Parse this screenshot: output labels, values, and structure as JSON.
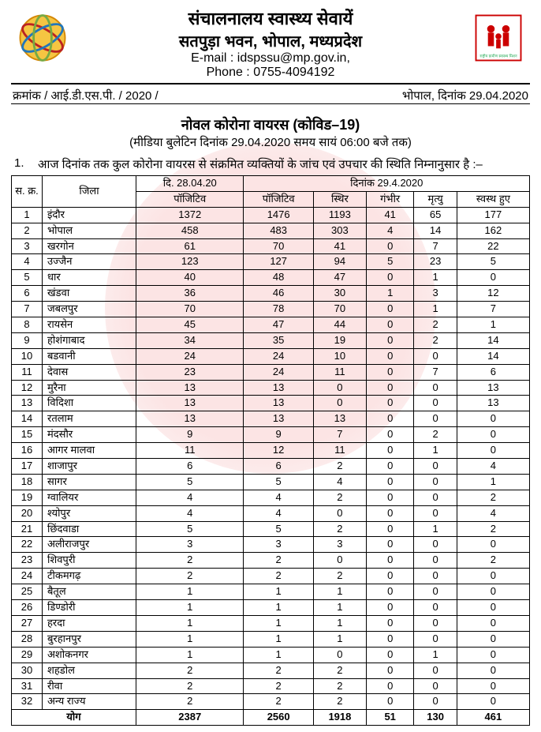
{
  "header": {
    "line1": "संचालनालय स्वास्थ्य सेवायें",
    "line2": "सतपुड़ा भवन, भोपाल, मध्यप्रदेश",
    "email_label": "E-mail : idspssu@mp.gov.in,",
    "phone_label": "Phone : 0755-4094192"
  },
  "subheader": {
    "left": "क्रमांक / आई.डी.एस.पी. / 2020 /",
    "right": "भोपाल, दिनांक 29.04.2020"
  },
  "title": {
    "main": "नोवल कोरोना वायरस (कोविड–19)",
    "sub": "(मीडिया बुलेटिन दिनांक 29.04.2020 समय सायं 06:00 बजे तक)"
  },
  "intro": {
    "num": "1.",
    "text": "आज दिनांक तक कुल कोरोना वायरस से संक्रमित व्यक्तियों के जांच एवं उपचार की स्थिति निम्नानुसार है :–"
  },
  "table": {
    "col_sno": "स.\nक्र.",
    "col_district": "जिला",
    "col_date1": "दि. 28.04.20",
    "col_date2": "दिनांक 29.4.2020",
    "sub_positive": "पॉजिटिव",
    "sub_positive2": "पॉजिटिव",
    "sub_stable": "स्थिर",
    "sub_serious": "गंभीर",
    "sub_death": "मृत्यु",
    "sub_recovered": "स्वस्थ हुए",
    "rows": [
      [
        "1",
        "इंदौर",
        "1372",
        "1476",
        "1193",
        "41",
        "65",
        "177"
      ],
      [
        "2",
        "भोपाल",
        "458",
        "483",
        "303",
        "4",
        "14",
        "162"
      ],
      [
        "3",
        "खरगोन",
        "61",
        "70",
        "41",
        "0",
        "7",
        "22"
      ],
      [
        "4",
        "उज्जैन",
        "123",
        "127",
        "94",
        "5",
        "23",
        "5"
      ],
      [
        "5",
        "धार",
        "40",
        "48",
        "47",
        "0",
        "1",
        "0"
      ],
      [
        "6",
        "खंडवा",
        "36",
        "46",
        "30",
        "1",
        "3",
        "12"
      ],
      [
        "7",
        "जबलपुर",
        "70",
        "78",
        "70",
        "0",
        "1",
        "7"
      ],
      [
        "8",
        "रायसेन",
        "45",
        "47",
        "44",
        "0",
        "2",
        "1"
      ],
      [
        "9",
        "होशंगाबाद",
        "34",
        "35",
        "19",
        "0",
        "2",
        "14"
      ],
      [
        "10",
        "बडवानी",
        "24",
        "24",
        "10",
        "0",
        "0",
        "14"
      ],
      [
        "11",
        "देवास",
        "23",
        "24",
        "11",
        "0",
        "7",
        "6"
      ],
      [
        "12",
        "मुरैना",
        "13",
        "13",
        "0",
        "0",
        "0",
        "13"
      ],
      [
        "13",
        "विदिशा",
        "13",
        "13",
        "0",
        "0",
        "0",
        "13"
      ],
      [
        "14",
        "रतलाम",
        "13",
        "13",
        "13",
        "0",
        "0",
        "0"
      ],
      [
        "15",
        "मंदसौर",
        "9",
        "9",
        "7",
        "0",
        "2",
        "0"
      ],
      [
        "16",
        "आगर मालवा",
        "11",
        "12",
        "11",
        "0",
        "1",
        "0"
      ],
      [
        "17",
        "शाजापुर",
        "6",
        "6",
        "2",
        "0",
        "0",
        "4"
      ],
      [
        "18",
        "सागर",
        "5",
        "5",
        "4",
        "0",
        "0",
        "1"
      ],
      [
        "19",
        "ग्वालियर",
        "4",
        "4",
        "2",
        "0",
        "0",
        "2"
      ],
      [
        "20",
        "श्योपुर",
        "4",
        "4",
        "0",
        "0",
        "0",
        "4"
      ],
      [
        "21",
        "छिंदवाडा",
        "5",
        "5",
        "2",
        "0",
        "1",
        "2"
      ],
      [
        "22",
        "अलीराजपुर",
        "3",
        "3",
        "3",
        "0",
        "0",
        "0"
      ],
      [
        "23",
        "शिवपुरी",
        "2",
        "2",
        "0",
        "0",
        "0",
        "2"
      ],
      [
        "24",
        "टीकमगढ़",
        "2",
        "2",
        "2",
        "0",
        "0",
        "0"
      ],
      [
        "25",
        "बैतूल",
        "1",
        "1",
        "1",
        "0",
        "0",
        "0"
      ],
      [
        "26",
        "डिण्डोरी",
        "1",
        "1",
        "1",
        "0",
        "0",
        "0"
      ],
      [
        "27",
        "हरदा",
        "1",
        "1",
        "1",
        "0",
        "0",
        "0"
      ],
      [
        "28",
        "बुरहानपुर",
        "1",
        "1",
        "1",
        "0",
        "0",
        "0"
      ],
      [
        "29",
        "अशोकनगर",
        "1",
        "1",
        "0",
        "0",
        "1",
        "0"
      ],
      [
        "30",
        "शहडोल",
        "2",
        "2",
        "2",
        "0",
        "0",
        "0"
      ],
      [
        "31",
        "रीवा",
        "2",
        "2",
        "2",
        "0",
        "0",
        "0"
      ],
      [
        "32",
        "अन्य राज्य",
        "2",
        "2",
        "2",
        "0",
        "0",
        "0"
      ]
    ],
    "total_label": "योग",
    "totals": [
      "2387",
      "2560",
      "1918",
      "51",
      "130",
      "461"
    ]
  },
  "colors": {
    "watermark": "#e94b4b",
    "border": "#000000",
    "text": "#000000",
    "background": "#ffffff"
  }
}
